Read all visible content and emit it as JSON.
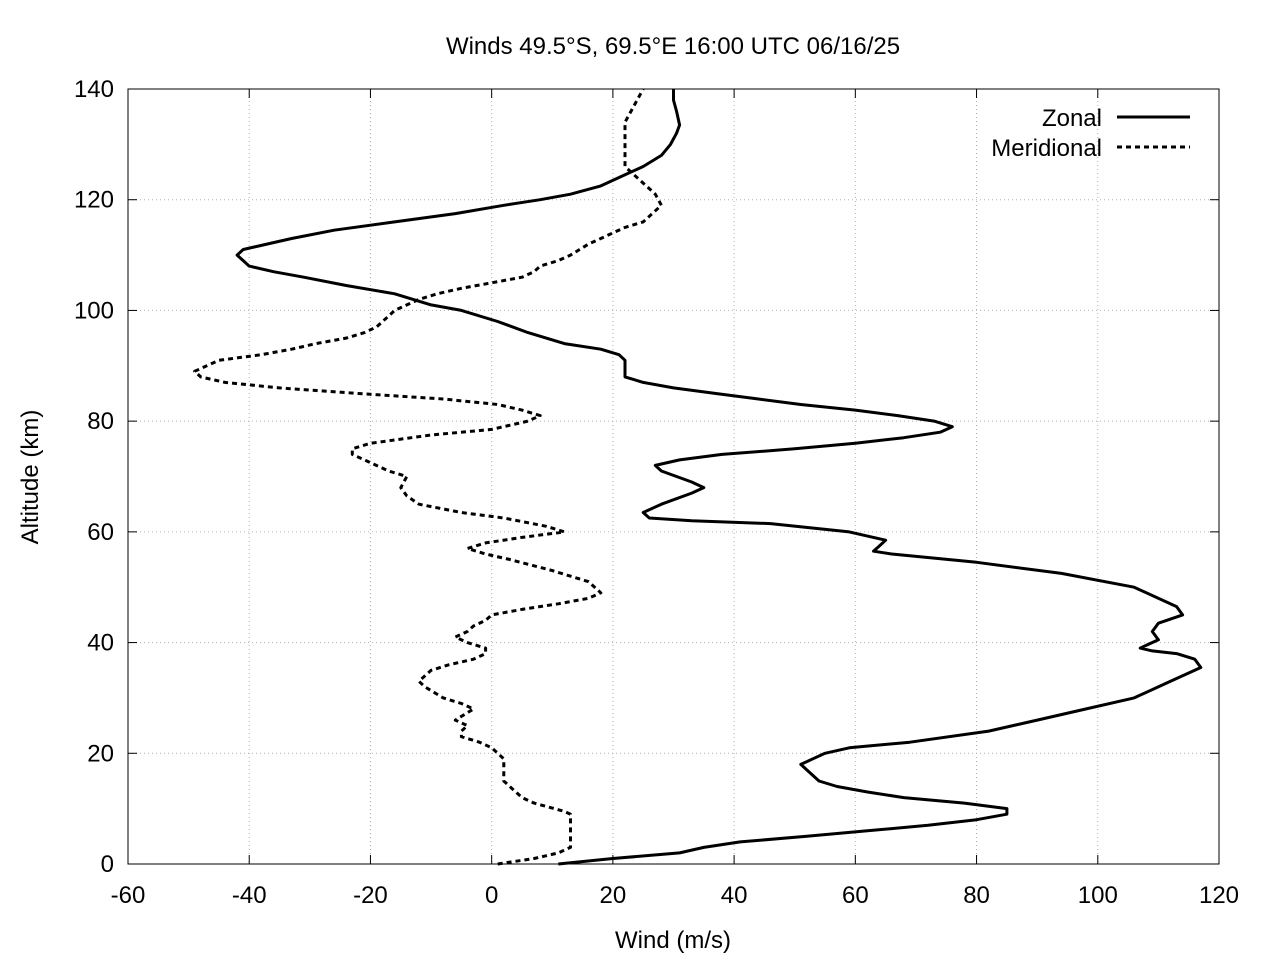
{
  "chart_data": {
    "type": "line",
    "title": "Winds 49.5°S, 69.5°E 16:00 UTC 06/16/25",
    "xlabel": "Wind (m/s)",
    "ylabel": "Altitude (km)",
    "xlim": [
      -60,
      120
    ],
    "ylim": [
      0,
      140
    ],
    "xticks": [
      -60,
      -40,
      -20,
      0,
      20,
      40,
      60,
      80,
      100,
      120
    ],
    "yticks": [
      0,
      20,
      40,
      60,
      80,
      100,
      120,
      140
    ],
    "grid": true,
    "legend_position": "top-right",
    "series": [
      {
        "name": "Zonal",
        "style": "solid",
        "color": "#000000",
        "points": [
          [
            11,
            0
          ],
          [
            20,
            1
          ],
          [
            31,
            2
          ],
          [
            35,
            3
          ],
          [
            41,
            4
          ],
          [
            52,
            5
          ],
          [
            62,
            6
          ],
          [
            72,
            7
          ],
          [
            80,
            8
          ],
          [
            85,
            9
          ],
          [
            85,
            10
          ],
          [
            78,
            11
          ],
          [
            68,
            12
          ],
          [
            62,
            13
          ],
          [
            57,
            14
          ],
          [
            54,
            15
          ],
          [
            52,
            17
          ],
          [
            51,
            18
          ],
          [
            53,
            19
          ],
          [
            55,
            20
          ],
          [
            59,
            21
          ],
          [
            69,
            22
          ],
          [
            82,
            24
          ],
          [
            90,
            26
          ],
          [
            98,
            28
          ],
          [
            106,
            30
          ],
          [
            112,
            33
          ],
          [
            117,
            35.5
          ],
          [
            116,
            37
          ],
          [
            113,
            38
          ],
          [
            109,
            38.5
          ],
          [
            107,
            39
          ],
          [
            110,
            40.5
          ],
          [
            109,
            42
          ],
          [
            110,
            43.5
          ],
          [
            114,
            45
          ],
          [
            113,
            46.5
          ],
          [
            106,
            50
          ],
          [
            94,
            52.5
          ],
          [
            80,
            54.5
          ],
          [
            66,
            56
          ],
          [
            63,
            56.5
          ],
          [
            64,
            57.5
          ],
          [
            65,
            58.5
          ],
          [
            59,
            60
          ],
          [
            46,
            61.5
          ],
          [
            33,
            62
          ],
          [
            26,
            62.5
          ],
          [
            25,
            63.5
          ],
          [
            28,
            65
          ],
          [
            33,
            67
          ],
          [
            35,
            68
          ],
          [
            33,
            69
          ],
          [
            28,
            71
          ],
          [
            27,
            72
          ],
          [
            31,
            73
          ],
          [
            38,
            74
          ],
          [
            50,
            75
          ],
          [
            60,
            76
          ],
          [
            68,
            77
          ],
          [
            74,
            78
          ],
          [
            76,
            79
          ],
          [
            73,
            80
          ],
          [
            67,
            81
          ],
          [
            60,
            82
          ],
          [
            51,
            83
          ],
          [
            44,
            84
          ],
          [
            37,
            85
          ],
          [
            30,
            86
          ],
          [
            25,
            87
          ],
          [
            22,
            88
          ],
          [
            22,
            89
          ],
          [
            22,
            90
          ],
          [
            22,
            91
          ],
          [
            21,
            92
          ],
          [
            18,
            93
          ],
          [
            12,
            94
          ],
          [
            6,
            96
          ],
          [
            1,
            98
          ],
          [
            -5,
            100
          ],
          [
            -10,
            101
          ],
          [
            -16,
            103
          ],
          [
            -24,
            104.5
          ],
          [
            -31,
            106
          ],
          [
            -36,
            107
          ],
          [
            -40,
            108
          ],
          [
            -41,
            109
          ],
          [
            -42,
            110
          ],
          [
            -41,
            111
          ],
          [
            -37,
            112
          ],
          [
            -33,
            113
          ],
          [
            -26,
            114.5
          ],
          [
            -16,
            116
          ],
          [
            -6,
            117.5
          ],
          [
            2,
            119
          ],
          [
            8,
            120
          ],
          [
            13,
            121
          ],
          [
            18,
            122.5
          ],
          [
            22,
            124.5
          ],
          [
            25,
            126
          ],
          [
            28,
            128
          ],
          [
            29.5,
            130
          ],
          [
            30.5,
            132
          ],
          [
            31,
            133.5
          ],
          [
            30.5,
            136
          ],
          [
            30,
            138
          ],
          [
            30,
            140
          ]
        ]
      },
      {
        "name": "Meridional",
        "style": "dashed",
        "color": "#000000",
        "points": [
          [
            1,
            0
          ],
          [
            7,
            1
          ],
          [
            11,
            2
          ],
          [
            13,
            3
          ],
          [
            13,
            5
          ],
          [
            13,
            7
          ],
          [
            13,
            9
          ],
          [
            12,
            9.5
          ],
          [
            7,
            11
          ],
          [
            5,
            12
          ],
          [
            3,
            14
          ],
          [
            2,
            15
          ],
          [
            2,
            17
          ],
          [
            2,
            19
          ],
          [
            0,
            21
          ],
          [
            -2,
            22
          ],
          [
            -5,
            23
          ],
          [
            -5,
            24
          ],
          [
            -4,
            25
          ],
          [
            -6,
            26
          ],
          [
            -3,
            28
          ],
          [
            -5,
            29
          ],
          [
            -8,
            30
          ],
          [
            -11,
            32
          ],
          [
            -12,
            33
          ],
          [
            -10,
            35
          ],
          [
            -7,
            36
          ],
          [
            -3,
            37
          ],
          [
            -1,
            38
          ],
          [
            -1,
            39
          ],
          [
            -4,
            40
          ],
          [
            -6,
            41
          ],
          [
            -4,
            42
          ],
          [
            -3,
            43
          ],
          [
            -1,
            44
          ],
          [
            0,
            45
          ],
          [
            5,
            46
          ],
          [
            11,
            47
          ],
          [
            16,
            48
          ],
          [
            18,
            49
          ],
          [
            16,
            51
          ],
          [
            10,
            53
          ],
          [
            3,
            55
          ],
          [
            -1,
            56
          ],
          [
            -4,
            57
          ],
          [
            -1,
            58
          ],
          [
            5,
            59
          ],
          [
            12,
            60
          ],
          [
            9,
            61
          ],
          [
            2,
            62.5
          ],
          [
            -5,
            63.5
          ],
          [
            -12,
            65
          ],
          [
            -14,
            66.5
          ],
          [
            -15,
            68
          ],
          [
            -14,
            70
          ],
          [
            -17,
            71
          ],
          [
            -21,
            73
          ],
          [
            -23,
            74
          ],
          [
            -23,
            75
          ],
          [
            -20,
            76
          ],
          [
            -10,
            77.5
          ],
          [
            0,
            78.5
          ],
          [
            6,
            80
          ],
          [
            8,
            81
          ],
          [
            5,
            82
          ],
          [
            1,
            83
          ],
          [
            -8,
            84
          ],
          [
            -22,
            85
          ],
          [
            -35,
            86
          ],
          [
            -44,
            87
          ],
          [
            -48,
            88
          ],
          [
            -49,
            89
          ],
          [
            -47,
            90
          ],
          [
            -45,
            91
          ],
          [
            -38,
            92
          ],
          [
            -33,
            93
          ],
          [
            -29,
            94
          ],
          [
            -24,
            95
          ],
          [
            -21,
            96
          ],
          [
            -19,
            97
          ],
          [
            -18,
            98
          ],
          [
            -17,
            99
          ],
          [
            -16,
            100
          ],
          [
            -14,
            101
          ],
          [
            -12,
            102
          ],
          [
            -9,
            103
          ],
          [
            -5,
            104
          ],
          [
            0,
            105
          ],
          [
            5,
            106
          ],
          [
            7,
            107
          ],
          [
            8,
            108
          ],
          [
            11,
            109
          ],
          [
            13,
            110
          ],
          [
            16,
            112
          ],
          [
            18,
            113
          ],
          [
            20,
            114
          ],
          [
            22,
            115
          ],
          [
            25,
            116
          ],
          [
            26,
            117
          ],
          [
            27,
            118
          ],
          [
            28,
            119
          ],
          [
            27,
            121
          ],
          [
            26,
            122
          ],
          [
            24,
            124
          ],
          [
            22,
            126
          ],
          [
            22,
            128
          ],
          [
            22,
            130
          ],
          [
            22,
            132
          ],
          [
            22,
            134
          ],
          [
            23,
            136
          ],
          [
            24,
            138
          ],
          [
            25,
            140
          ]
        ]
      }
    ]
  }
}
